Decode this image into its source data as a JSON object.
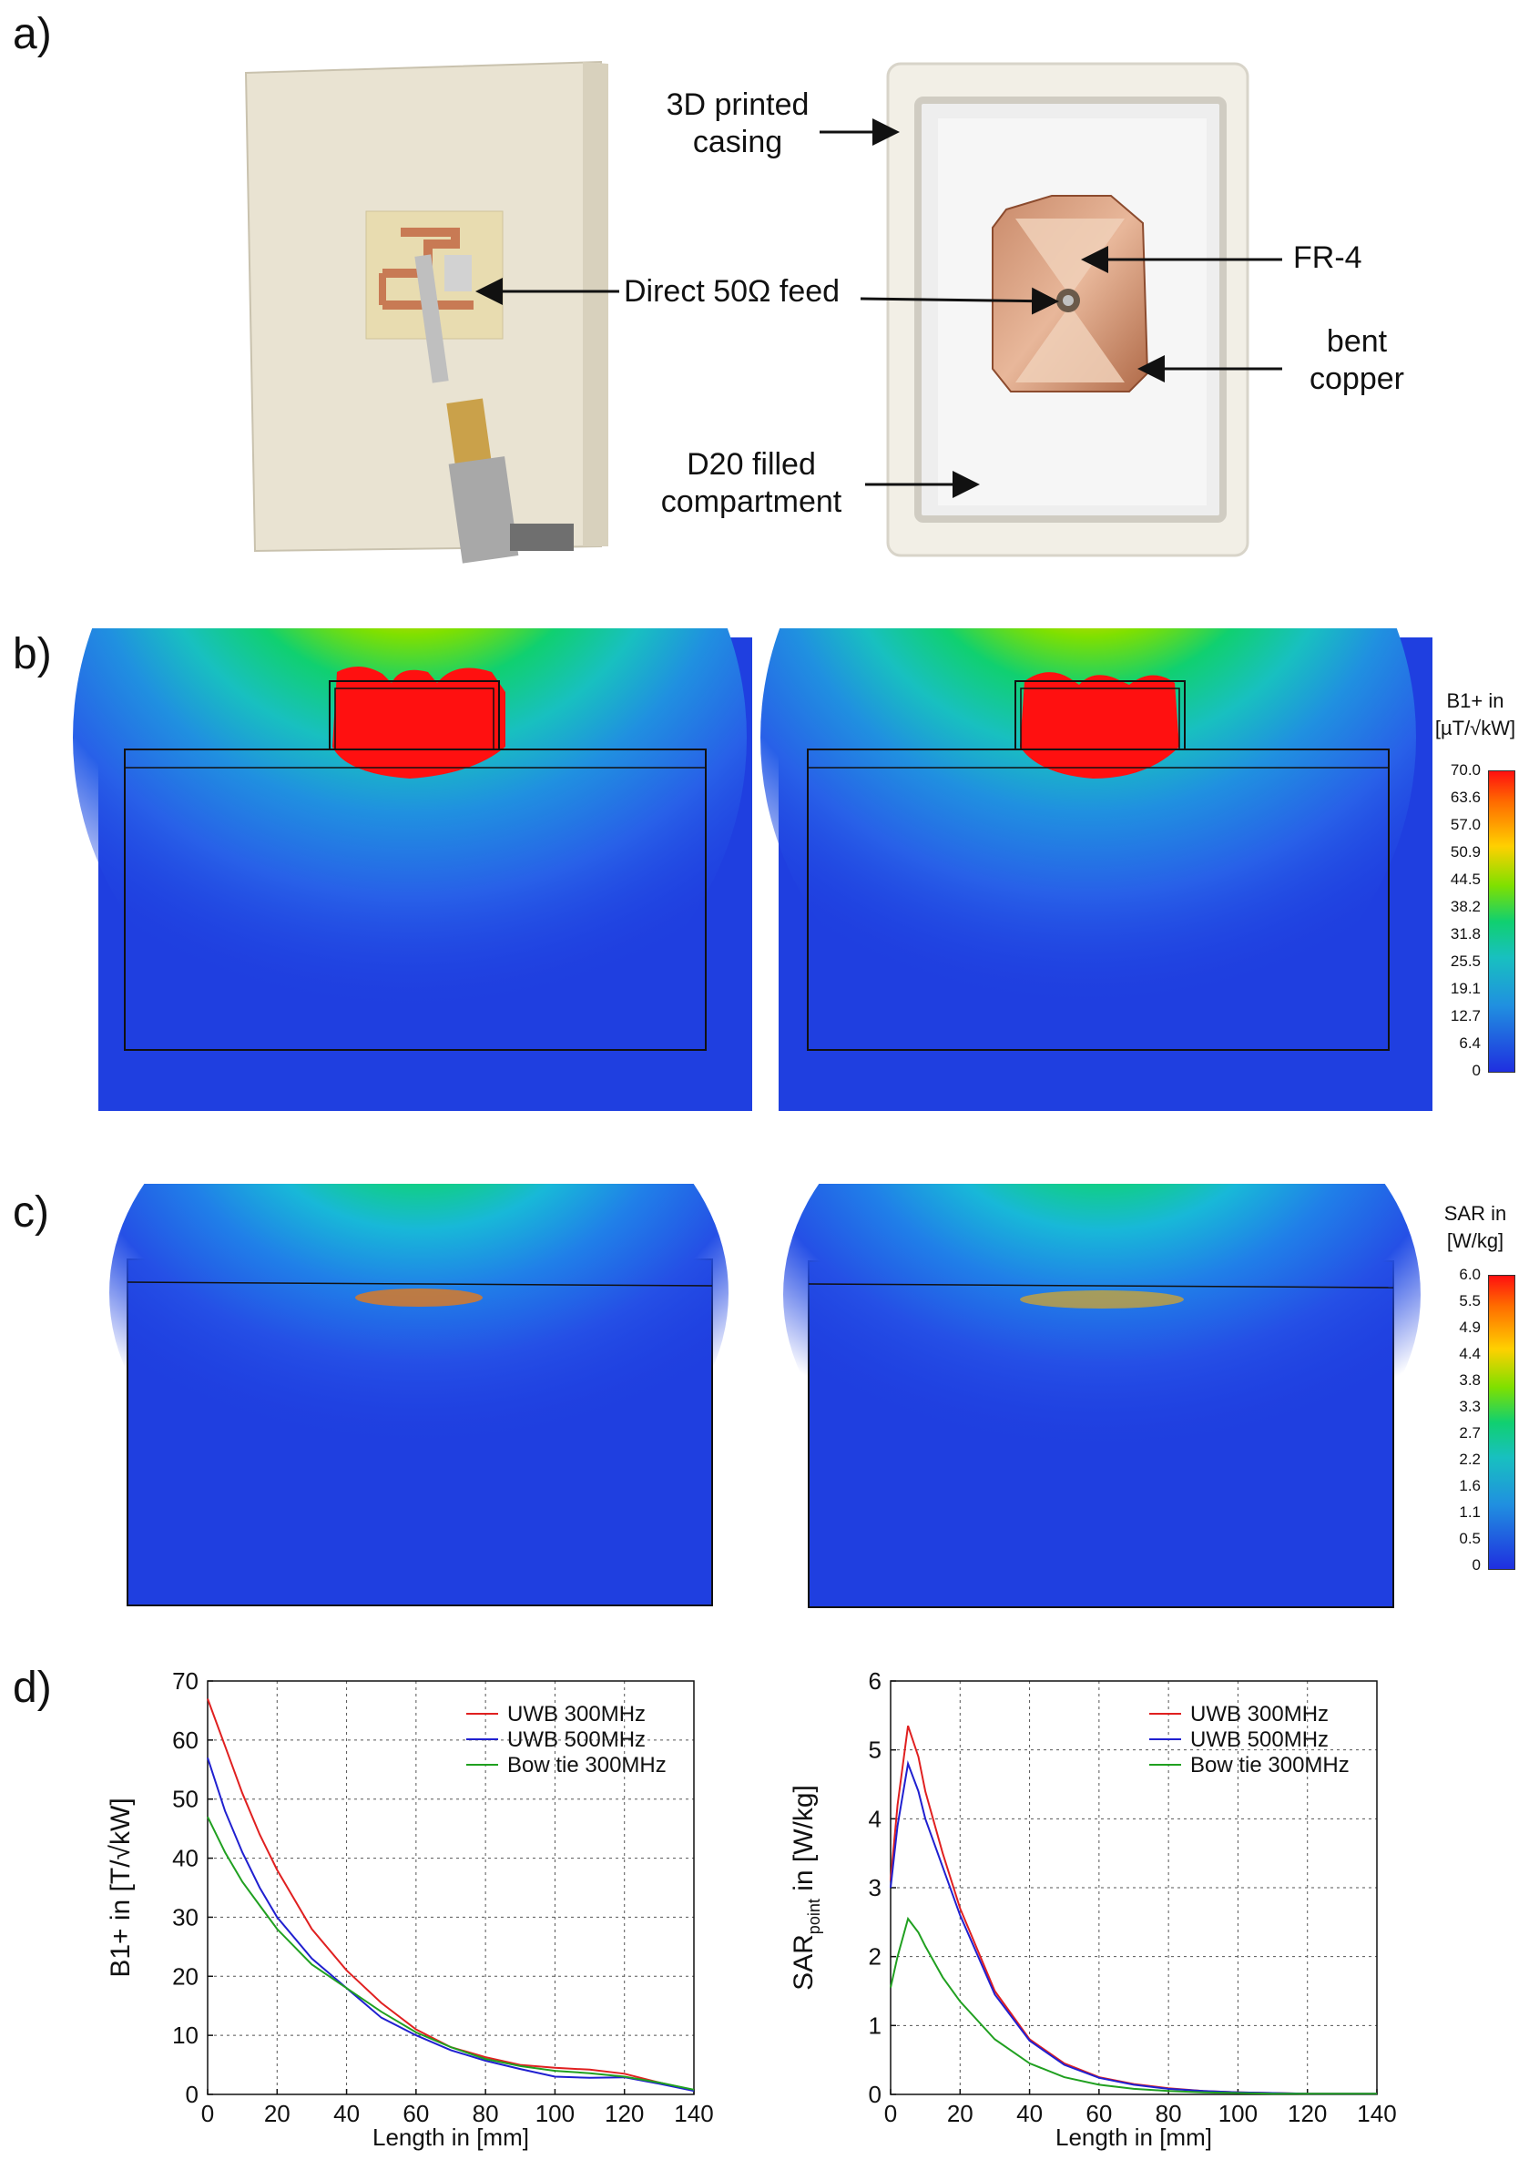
{
  "panels": {
    "a": "a)",
    "b": "b)",
    "c": "c)",
    "d": "d)"
  },
  "panel_a": {
    "labels": {
      "casing": "3D printed casing",
      "feed": "Direct 50Ω feed",
      "fr4": "FR-4",
      "copper": "bent copper",
      "compartment": "D20 filled compartment"
    }
  },
  "panel_b": {
    "colorbar": {
      "title_line1": "B1+ in",
      "title_line2": "[µT/√kW]",
      "ticks": [
        "70.0",
        "63.6",
        "57.0",
        "50.9",
        "44.5",
        "38.2",
        "31.8",
        "25.5",
        "19.1",
        "12.7",
        "6.4",
        "0"
      ]
    }
  },
  "panel_c": {
    "colorbar": {
      "title_line1": "SAR in",
      "title_line2": "[W/kg]",
      "ticks": [
        "6.0",
        "5.5",
        "4.9",
        "4.4",
        "3.8",
        "3.3",
        "2.7",
        "2.2",
        "1.6",
        "1.1",
        "0.5",
        "0"
      ]
    }
  },
  "colors": {
    "map_background": "#1f3fe0",
    "uwb_300": "#e02020",
    "uwb_500": "#2020d0",
    "bowtie_300": "#20a020"
  },
  "chart_data": [
    {
      "type": "line",
      "xlabel": "Length in [mm]",
      "ylabel": "B1+ in [T/√kW]",
      "xlim": [
        0,
        140
      ],
      "ylim": [
        0,
        70
      ],
      "xticks": [
        0,
        20,
        40,
        60,
        80,
        100,
        120,
        140
      ],
      "yticks": [
        0,
        10,
        20,
        30,
        40,
        50,
        60,
        70
      ],
      "grid": true,
      "legend": "top-right",
      "series": [
        {
          "name": "UWB 300MHz",
          "color": "#e02020",
          "x": [
            0,
            5,
            10,
            15,
            20,
            30,
            40,
            50,
            60,
            70,
            80,
            90,
            100,
            110,
            120,
            130,
            140
          ],
          "y": [
            67,
            59,
            51,
            44,
            38,
            28,
            21,
            15.5,
            11,
            8,
            6.3,
            5,
            4.5,
            4.2,
            3.5,
            2,
            0.7
          ]
        },
        {
          "name": "UWB 500MHz",
          "color": "#2020d0",
          "x": [
            0,
            5,
            10,
            15,
            20,
            30,
            40,
            50,
            60,
            70,
            80,
            90,
            100,
            110,
            120,
            130,
            140
          ],
          "y": [
            57,
            48,
            41,
            35,
            30,
            23,
            18,
            13,
            10,
            7.5,
            5.7,
            4.3,
            3,
            2.8,
            2.9,
            1.8,
            0.6
          ]
        },
        {
          "name": "Bow tie 300MHz",
          "color": "#20a020",
          "x": [
            0,
            5,
            10,
            15,
            20,
            30,
            40,
            50,
            60,
            70,
            80,
            90,
            100,
            110,
            120,
            130,
            140
          ],
          "y": [
            47,
            41,
            36,
            32,
            28,
            22,
            18,
            14,
            10.5,
            8,
            6,
            4.8,
            4,
            3.6,
            3,
            2,
            0.8
          ]
        }
      ]
    },
    {
      "type": "line",
      "xlabel": "Length in [mm]",
      "ylabel_main": "SAR",
      "ylabel_sub": "point",
      "ylabel_rest": " in [W/kg]",
      "xlim": [
        0,
        140
      ],
      "ylim": [
        0,
        6
      ],
      "xticks": [
        0,
        20,
        40,
        60,
        80,
        100,
        120,
        140
      ],
      "yticks": [
        0,
        1,
        2,
        3,
        4,
        5,
        6
      ],
      "grid": true,
      "legend": "top-right",
      "series": [
        {
          "name": "UWB 300MHz",
          "color": "#e02020",
          "x": [
            0,
            2,
            5,
            8,
            10,
            15,
            20,
            30,
            40,
            50,
            60,
            70,
            80,
            90,
            100,
            110,
            120,
            130,
            140
          ],
          "y": [
            3.1,
            4.2,
            5.35,
            4.9,
            4.4,
            3.5,
            2.7,
            1.5,
            0.8,
            0.45,
            0.25,
            0.15,
            0.09,
            0.05,
            0.03,
            0.02,
            0.01,
            0.01,
            0.01
          ]
        },
        {
          "name": "UWB 500MHz",
          "color": "#2020d0",
          "x": [
            0,
            2,
            5,
            8,
            10,
            15,
            20,
            30,
            40,
            50,
            60,
            70,
            80,
            90,
            100,
            110,
            120,
            130,
            140
          ],
          "y": [
            3.0,
            3.9,
            4.8,
            4.4,
            4.0,
            3.3,
            2.6,
            1.45,
            0.78,
            0.43,
            0.24,
            0.14,
            0.08,
            0.05,
            0.03,
            0.02,
            0.01,
            0.01,
            0.01
          ]
        },
        {
          "name": "Bow tie 300MHz",
          "color": "#20a020",
          "x": [
            0,
            2,
            5,
            8,
            10,
            15,
            20,
            30,
            40,
            50,
            60,
            70,
            80,
            90,
            100,
            110,
            120,
            130,
            140
          ],
          "y": [
            1.55,
            2.0,
            2.55,
            2.35,
            2.15,
            1.7,
            1.35,
            0.8,
            0.45,
            0.25,
            0.14,
            0.08,
            0.05,
            0.03,
            0.02,
            0.01,
            0.01,
            0.01,
            0.01
          ]
        }
      ]
    }
  ]
}
